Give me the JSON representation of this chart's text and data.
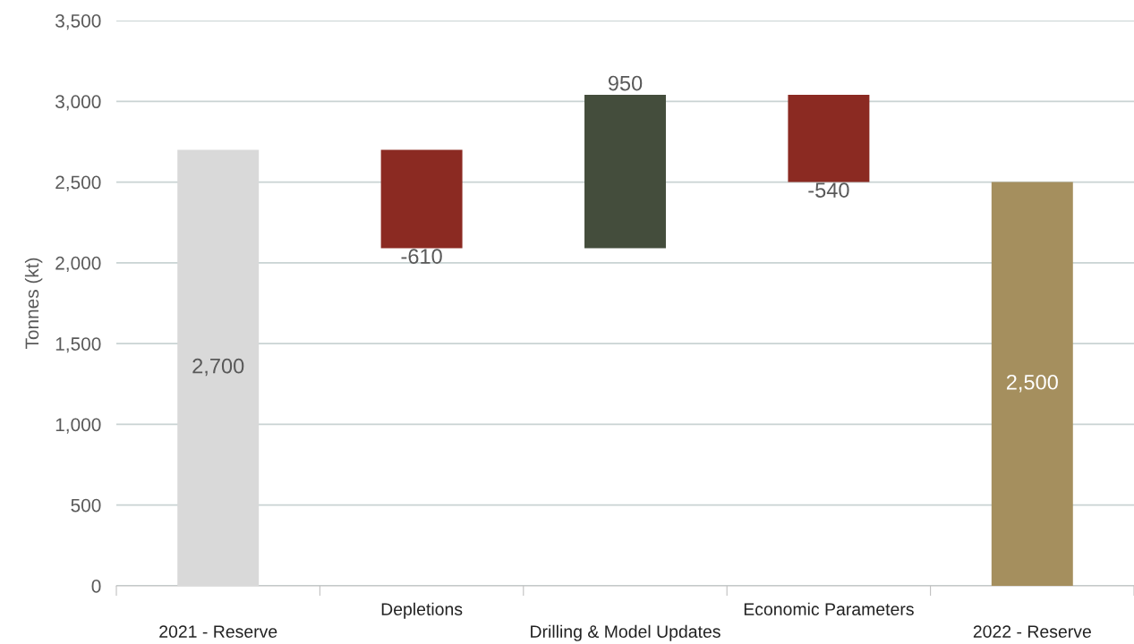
{
  "chart_data": {
    "type": "bar",
    "ylabel": "Tonnes (kt)",
    "categories": [
      "2021 - Reserve",
      "Depletions",
      "Drilling & Model Updates",
      "Economic Parameters",
      "2022 - Reserve"
    ],
    "values": [
      2700,
      -610,
      950,
      -540,
      2500
    ],
    "base": [
      0,
      2700,
      2090,
      3040,
      0
    ],
    "colors": [
      "#d9d9d9",
      "#8b2a22",
      "#444d3c",
      "#8b2a22",
      "#a58f5e"
    ],
    "value_labels": [
      "2,700",
      "-610",
      "950",
      "-540",
      "2,500"
    ],
    "ylim": [
      0,
      3500
    ],
    "yticks": [
      {
        "value": 0,
        "label": "0"
      },
      {
        "value": 500,
        "label": "500"
      },
      {
        "value": 1000,
        "label": "1,000"
      },
      {
        "value": 1500,
        "label": "1,500"
      },
      {
        "value": 2000,
        "label": "2,000"
      },
      {
        "value": 2500,
        "label": "2,500"
      },
      {
        "value": 3000,
        "label": "3,000"
      },
      {
        "value": 3500,
        "label": "3,500"
      }
    ],
    "grid": "y"
  }
}
